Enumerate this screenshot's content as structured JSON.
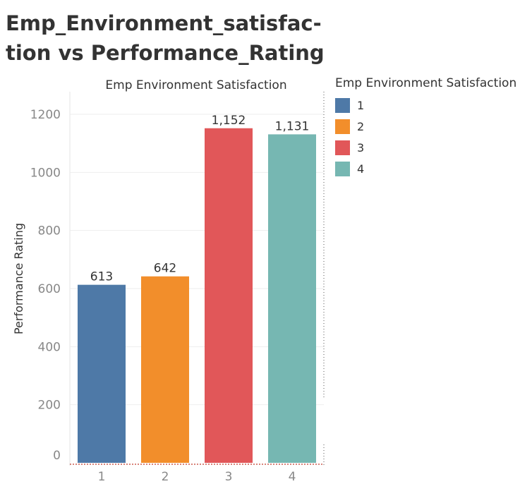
{
  "title_lines": [
    "Emp_Environment_satisfac-",
    "tion vs  Performance_Rating"
  ],
  "chart_data": {
    "type": "bar",
    "title": "Emp Environment Satisfaction",
    "xlabel": "",
    "ylabel": "Performance Rating",
    "categories": [
      "1",
      "2",
      "3",
      "4"
    ],
    "values": [
      613,
      642,
      1152,
      1131
    ],
    "value_labels": [
      "613",
      "642",
      "1,152",
      "1,131"
    ],
    "colors": [
      "#4e79a7",
      "#f28e2b",
      "#e15759",
      "#76b7b2"
    ],
    "ylim": [
      0,
      1200
    ],
    "yticks": [
      0,
      200,
      400,
      600,
      800,
      1000,
      1200
    ],
    "grid": true,
    "legend": {
      "title": "Emp Environment Satisfaction",
      "position": "right",
      "items": [
        "1",
        "2",
        "3",
        "4"
      ]
    }
  }
}
